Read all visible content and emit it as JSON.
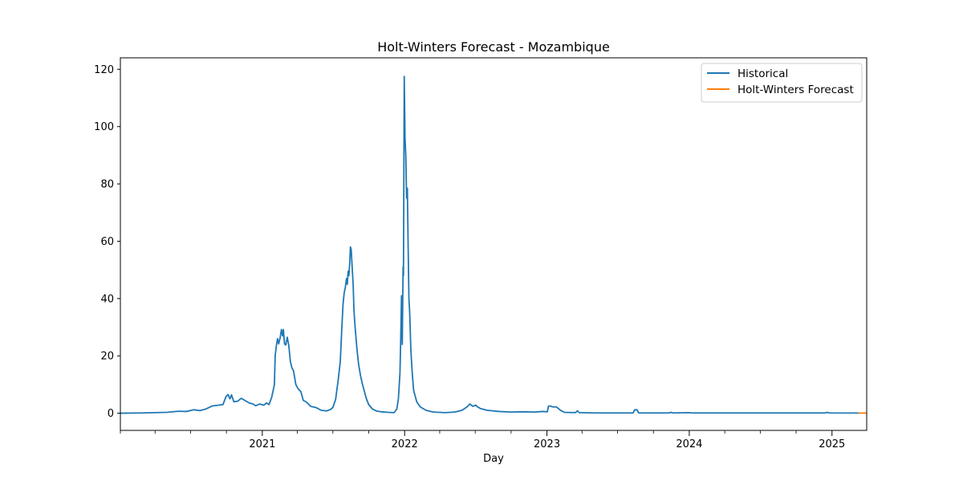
{
  "chart_data": {
    "type": "line",
    "title": "Holt-Winters Forecast - Mozambique",
    "xlabel": "Day",
    "ylabel": "",
    "x_axis_type": "date",
    "xlim": [
      "2020-01-03",
      "2025-03-31"
    ],
    "ylim": [
      -6,
      124
    ],
    "yticks": [
      0,
      20,
      40,
      60,
      80,
      100,
      120
    ],
    "xticks": [
      {
        "date": "2021-01-01",
        "label": "2021"
      },
      {
        "date": "2022-01-01",
        "label": "2022"
      },
      {
        "date": "2023-01-01",
        "label": "2023"
      },
      {
        "date": "2024-01-01",
        "label": "2024"
      },
      {
        "date": "2025-01-01",
        "label": "2025"
      }
    ],
    "grid": false,
    "legend_position": "upper right",
    "series": [
      {
        "name": "Historical",
        "color": "#1f77b4",
        "points": [
          [
            "2020-01-03",
            0
          ],
          [
            "2020-03-01",
            0.1
          ],
          [
            "2020-05-01",
            0.3
          ],
          [
            "2020-06-01",
            0.7
          ],
          [
            "2020-06-20",
            0.6
          ],
          [
            "2020-07-10",
            1.2
          ],
          [
            "2020-07-25",
            0.9
          ],
          [
            "2020-08-10",
            1.5
          ],
          [
            "2020-08-25",
            2.5
          ],
          [
            "2020-09-10",
            2.8
          ],
          [
            "2020-09-22",
            3.0
          ],
          [
            "2020-09-30",
            5.8
          ],
          [
            "2020-10-05",
            6.5
          ],
          [
            "2020-10-10",
            5.0
          ],
          [
            "2020-10-14",
            6.4
          ],
          [
            "2020-10-20",
            4.0
          ],
          [
            "2020-10-30",
            4.2
          ],
          [
            "2020-11-08",
            5.2
          ],
          [
            "2020-11-18",
            4.4
          ],
          [
            "2020-11-28",
            3.6
          ],
          [
            "2020-12-08",
            3.2
          ],
          [
            "2020-12-15",
            2.6
          ],
          [
            "2020-12-25",
            3.2
          ],
          [
            "2021-01-05",
            2.8
          ],
          [
            "2021-01-12",
            3.6
          ],
          [
            "2021-01-18",
            3.0
          ],
          [
            "2021-01-25",
            5.5
          ],
          [
            "2021-02-01",
            10
          ],
          [
            "2021-02-03",
            20
          ],
          [
            "2021-02-06",
            23.5
          ],
          [
            "2021-02-09",
            26
          ],
          [
            "2021-02-12",
            24.2
          ],
          [
            "2021-02-16",
            26.5
          ],
          [
            "2021-02-19",
            29.2
          ],
          [
            "2021-02-22",
            27
          ],
          [
            "2021-02-24",
            29.2
          ],
          [
            "2021-02-27",
            24.2
          ],
          [
            "2021-03-02",
            23.8
          ],
          [
            "2021-03-06",
            26.5
          ],
          [
            "2021-03-10",
            23.5
          ],
          [
            "2021-03-14",
            18
          ],
          [
            "2021-03-18",
            15.8
          ],
          [
            "2021-03-22",
            14.8
          ],
          [
            "2021-03-28",
            10
          ],
          [
            "2021-04-03",
            8.5
          ],
          [
            "2021-04-10",
            7.5
          ],
          [
            "2021-04-16",
            4.5
          ],
          [
            "2021-04-25",
            3.8
          ],
          [
            "2021-05-05",
            2.4
          ],
          [
            "2021-05-20",
            1.9
          ],
          [
            "2021-06-01",
            1.0
          ],
          [
            "2021-06-15",
            0.8
          ],
          [
            "2021-06-25",
            1.3
          ],
          [
            "2021-07-01",
            2.0
          ],
          [
            "2021-07-08",
            4.8
          ],
          [
            "2021-07-15",
            12
          ],
          [
            "2021-07-20",
            18
          ],
          [
            "2021-07-24",
            30
          ],
          [
            "2021-07-27",
            38
          ],
          [
            "2021-07-30",
            42
          ],
          [
            "2021-08-02",
            44
          ],
          [
            "2021-08-05",
            47
          ],
          [
            "2021-08-07",
            45
          ],
          [
            "2021-08-09",
            49.5
          ],
          [
            "2021-08-11",
            48
          ],
          [
            "2021-08-13",
            52
          ],
          [
            "2021-08-15",
            58
          ],
          [
            "2021-08-17",
            57
          ],
          [
            "2021-08-19",
            52
          ],
          [
            "2021-08-22",
            45
          ],
          [
            "2021-08-24",
            36
          ],
          [
            "2021-08-27",
            30
          ],
          [
            "2021-09-01",
            22
          ],
          [
            "2021-09-05",
            17
          ],
          [
            "2021-09-10",
            13
          ],
          [
            "2021-09-15",
            10
          ],
          [
            "2021-09-20",
            7.5
          ],
          [
            "2021-09-25",
            5
          ],
          [
            "2021-10-01",
            3
          ],
          [
            "2021-10-10",
            1.5
          ],
          [
            "2021-10-20",
            0.8
          ],
          [
            "2021-11-01",
            0.5
          ],
          [
            "2021-11-20",
            0.3
          ],
          [
            "2021-12-05",
            0.2
          ],
          [
            "2021-12-12",
            1.5
          ],
          [
            "2021-12-16",
            5
          ],
          [
            "2021-12-20",
            14
          ],
          [
            "2021-12-22",
            26
          ],
          [
            "2021-12-24",
            41
          ],
          [
            "2021-12-26",
            24
          ],
          [
            "2021-12-28",
            51
          ],
          [
            "2021-12-29",
            48
          ],
          [
            "2021-12-31",
            117.5
          ],
          [
            "2022-01-02",
            96
          ],
          [
            "2022-01-04",
            90
          ],
          [
            "2022-01-06",
            75
          ],
          [
            "2022-01-08",
            78.5
          ],
          [
            "2022-01-10",
            58
          ],
          [
            "2022-01-12",
            40
          ],
          [
            "2022-01-14",
            35
          ],
          [
            "2022-01-17",
            22
          ],
          [
            "2022-01-20",
            15
          ],
          [
            "2022-01-24",
            8
          ],
          [
            "2022-02-01",
            4
          ],
          [
            "2022-02-10",
            2.2
          ],
          [
            "2022-02-25",
            1.0
          ],
          [
            "2022-03-15",
            0.4
          ],
          [
            "2022-04-15",
            0.2
          ],
          [
            "2022-05-10",
            0.4
          ],
          [
            "2022-05-28",
            1.0
          ],
          [
            "2022-06-10",
            2.2
          ],
          [
            "2022-06-17",
            3.2
          ],
          [
            "2022-06-25",
            2.4
          ],
          [
            "2022-07-02",
            2.8
          ],
          [
            "2022-07-08",
            2.1
          ],
          [
            "2022-07-15",
            1.6
          ],
          [
            "2022-08-01",
            1.0
          ],
          [
            "2022-09-01",
            0.6
          ],
          [
            "2022-10-01",
            0.4
          ],
          [
            "2022-11-01",
            0.5
          ],
          [
            "2022-12-01",
            0.4
          ],
          [
            "2022-12-20",
            0.6
          ],
          [
            "2023-01-02",
            0.5
          ],
          [
            "2023-01-05",
            2.5
          ],
          [
            "2023-01-10",
            2.5
          ],
          [
            "2023-01-15",
            2.2
          ],
          [
            "2023-01-25",
            2.2
          ],
          [
            "2023-02-05",
            1.0
          ],
          [
            "2023-02-15",
            0.3
          ],
          [
            "2023-03-15",
            0.2
          ],
          [
            "2023-03-20",
            0.8
          ],
          [
            "2023-03-25",
            0.2
          ],
          [
            "2023-05-01",
            0.1
          ],
          [
            "2023-08-10",
            0.1
          ],
          [
            "2023-08-14",
            1.2
          ],
          [
            "2023-08-20",
            1.2
          ],
          [
            "2023-08-24",
            0.1
          ],
          [
            "2023-11-10",
            0.1
          ],
          [
            "2023-11-15",
            0.3
          ],
          [
            "2023-11-20",
            0.1
          ],
          [
            "2024-01-01",
            0.2
          ],
          [
            "2024-01-05",
            0.1
          ],
          [
            "2024-12-15",
            0.1
          ],
          [
            "2024-12-20",
            0.3
          ],
          [
            "2024-12-25",
            0.1
          ],
          [
            "2025-03-10",
            0.05
          ]
        ]
      },
      {
        "name": "Holt-Winters Forecast",
        "color": "#ff7f0e",
        "points": [
          [
            "2025-03-10",
            0.05
          ],
          [
            "2025-03-31",
            0.05
          ]
        ]
      }
    ]
  }
}
